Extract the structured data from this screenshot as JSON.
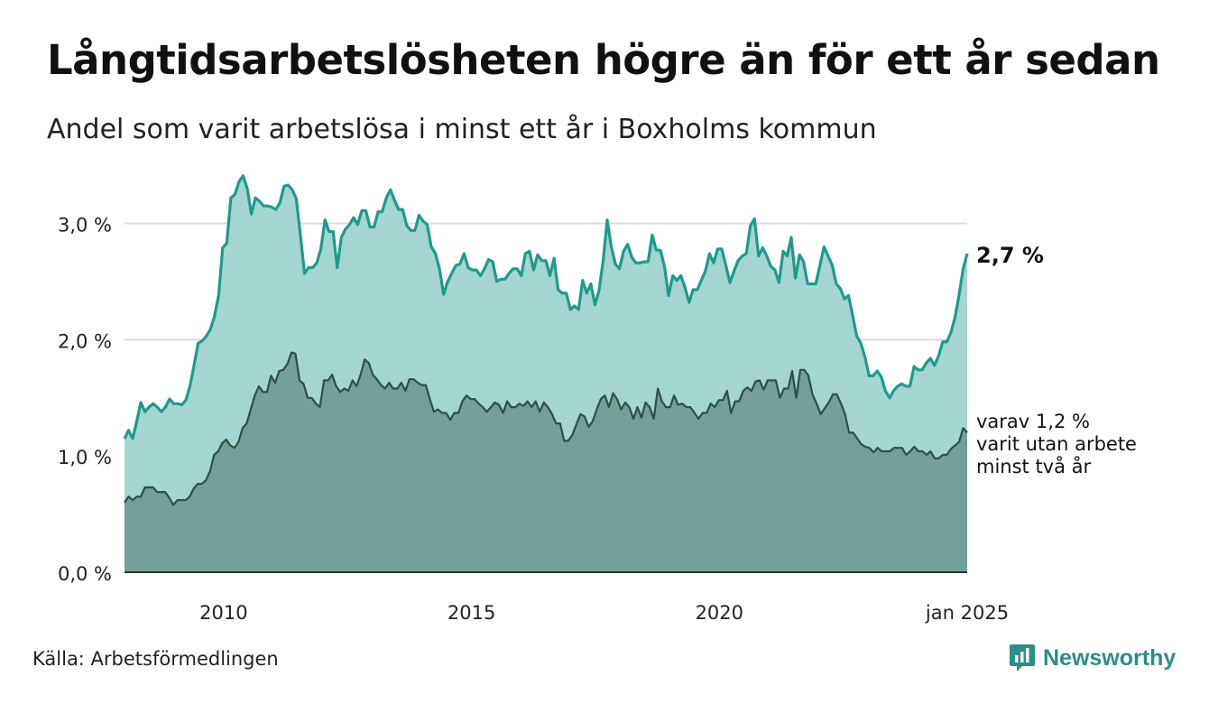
{
  "title": "Långtidsarbetslösheten högre än för ett år sedan",
  "subtitle": "Andel som varit arbetslösa i minst ett år i Boxholms kommun",
  "source": "Källa: Arbetsförmedlingen",
  "brand": "Newsworthy",
  "colors": {
    "upper_fill": "#a3d6d0",
    "upper_line": "#1f9a8c",
    "lower_fill": "#739f98",
    "lower_line": "#2e4f48",
    "grid": "#dddddd",
    "axis": "#333333",
    "brand": "#2a8f87"
  },
  "chart_data": {
    "type": "area",
    "x_start": 2008.0,
    "x_end": 2025.0,
    "x_step": "month",
    "xlim": [
      2008.0,
      2025.0
    ],
    "ylim": [
      0,
      3.4
    ],
    "y_ticks": [
      {
        "value": 0,
        "label": "0,0 %"
      },
      {
        "value": 1,
        "label": "1,0 %"
      },
      {
        "value": 2,
        "label": "2,0 %"
      },
      {
        "value": 3,
        "label": "3,0 %"
      }
    ],
    "x_ticks": [
      {
        "value": 2010,
        "label": "2010"
      },
      {
        "value": 2015,
        "label": "2015"
      },
      {
        "value": 2020,
        "label": "2020"
      },
      {
        "value": 2025,
        "label": "jan 2025"
      }
    ],
    "grid": true,
    "series": [
      {
        "name": "Arbetslösa minst ett år",
        "end_label": "2,7 %",
        "values": [
          1.15,
          1.22,
          1.15,
          1.3,
          1.46,
          1.38,
          1.42,
          1.45,
          1.42,
          1.38,
          1.42,
          1.49,
          1.45,
          1.45,
          1.44,
          1.48,
          1.6,
          1.78,
          1.97,
          1.99,
          2.03,
          2.09,
          2.2,
          2.38,
          2.79,
          2.83,
          3.22,
          3.25,
          3.36,
          3.41,
          3.3,
          3.08,
          3.22,
          3.19,
          3.15,
          3.15,
          3.14,
          3.12,
          3.18,
          3.32,
          3.33,
          3.29,
          3.21,
          2.9,
          2.57,
          2.62,
          2.62,
          2.66,
          2.78,
          3.03,
          2.93,
          2.93,
          2.62,
          2.88,
          2.95,
          2.99,
          3.05,
          2.99,
          3.11,
          3.11,
          2.97,
          2.97,
          3.1,
          3.1,
          3.22,
          3.29,
          3.2,
          3.12,
          3.12,
          2.98,
          2.94,
          2.94,
          3.07,
          3.02,
          2.99,
          2.8,
          2.74,
          2.61,
          2.39,
          2.5,
          2.57,
          2.64,
          2.65,
          2.74,
          2.62,
          2.6,
          2.6,
          2.55,
          2.61,
          2.69,
          2.67,
          2.5,
          2.52,
          2.52,
          2.57,
          2.61,
          2.61,
          2.55,
          2.74,
          2.76,
          2.6,
          2.73,
          2.68,
          2.68,
          2.55,
          2.7,
          2.43,
          2.4,
          2.4,
          2.26,
          2.29,
          2.26,
          2.51,
          2.4,
          2.48,
          2.3,
          2.42,
          2.68,
          3.03,
          2.8,
          2.65,
          2.61,
          2.76,
          2.82,
          2.71,
          2.66,
          2.66,
          2.67,
          2.67,
          2.9,
          2.77,
          2.77,
          2.63,
          2.38,
          2.55,
          2.51,
          2.55,
          2.45,
          2.32,
          2.43,
          2.43,
          2.51,
          2.59,
          2.74,
          2.66,
          2.78,
          2.78,
          2.64,
          2.49,
          2.59,
          2.68,
          2.72,
          2.74,
          2.98,
          3.04,
          2.72,
          2.79,
          2.72,
          2.63,
          2.6,
          2.49,
          2.76,
          2.72,
          2.88,
          2.53,
          2.73,
          2.67,
          2.48,
          2.48,
          2.48,
          2.64,
          2.8,
          2.72,
          2.64,
          2.48,
          2.44,
          2.35,
          2.38,
          2.21,
          2.03,
          1.97,
          1.85,
          1.69,
          1.69,
          1.73,
          1.68,
          1.56,
          1.5,
          1.56,
          1.6,
          1.62,
          1.6,
          1.6,
          1.77,
          1.74,
          1.74,
          1.8,
          1.84,
          1.78,
          1.86,
          1.98,
          1.98,
          2.06,
          2.19,
          2.38,
          2.61,
          2.74
        ]
      },
      {
        "name": "varit utan arbete minst två år",
        "end_label": [
          "varav 1,2 %",
          "varit utan arbete",
          "minst två år"
        ],
        "values": [
          0.6,
          0.65,
          0.62,
          0.65,
          0.65,
          0.73,
          0.73,
          0.73,
          0.69,
          0.69,
          0.69,
          0.64,
          0.58,
          0.62,
          0.62,
          0.62,
          0.65,
          0.72,
          0.76,
          0.76,
          0.79,
          0.87,
          1.01,
          1.04,
          1.11,
          1.14,
          1.09,
          1.07,
          1.12,
          1.24,
          1.28,
          1.4,
          1.52,
          1.6,
          1.55,
          1.55,
          1.69,
          1.63,
          1.73,
          1.74,
          1.79,
          1.89,
          1.88,
          1.65,
          1.62,
          1.5,
          1.5,
          1.45,
          1.42,
          1.65,
          1.65,
          1.7,
          1.6,
          1.55,
          1.58,
          1.56,
          1.65,
          1.6,
          1.7,
          1.83,
          1.8,
          1.7,
          1.66,
          1.61,
          1.58,
          1.63,
          1.58,
          1.58,
          1.63,
          1.56,
          1.66,
          1.66,
          1.63,
          1.61,
          1.61,
          1.49,
          1.38,
          1.4,
          1.37,
          1.37,
          1.31,
          1.37,
          1.37,
          1.47,
          1.52,
          1.49,
          1.49,
          1.45,
          1.42,
          1.38,
          1.42,
          1.46,
          1.44,
          1.37,
          1.47,
          1.42,
          1.42,
          1.45,
          1.43,
          1.47,
          1.42,
          1.47,
          1.38,
          1.46,
          1.42,
          1.36,
          1.28,
          1.28,
          1.13,
          1.13,
          1.18,
          1.27,
          1.36,
          1.34,
          1.25,
          1.3,
          1.4,
          1.49,
          1.52,
          1.42,
          1.54,
          1.49,
          1.4,
          1.46,
          1.42,
          1.32,
          1.42,
          1.33,
          1.46,
          1.42,
          1.32,
          1.58,
          1.47,
          1.42,
          1.42,
          1.52,
          1.44,
          1.45,
          1.42,
          1.42,
          1.37,
          1.32,
          1.37,
          1.37,
          1.45,
          1.42,
          1.48,
          1.48,
          1.56,
          1.37,
          1.47,
          1.47,
          1.56,
          1.59,
          1.56,
          1.64,
          1.65,
          1.57,
          1.65,
          1.65,
          1.65,
          1.5,
          1.58,
          1.58,
          1.73,
          1.5,
          1.74,
          1.74,
          1.69,
          1.53,
          1.45,
          1.36,
          1.41,
          1.46,
          1.53,
          1.53,
          1.45,
          1.36,
          1.2,
          1.2,
          1.15,
          1.1,
          1.08,
          1.07,
          1.03,
          1.07,
          1.04,
          1.04,
          1.04,
          1.07,
          1.07,
          1.07,
          1.01,
          1.04,
          1.08,
          1.04,
          1.04,
          1.01,
          1.04,
          0.98,
          0.98,
          1.01,
          1.01,
          1.06,
          1.09,
          1.12,
          1.24,
          1.2
        ]
      }
    ]
  }
}
